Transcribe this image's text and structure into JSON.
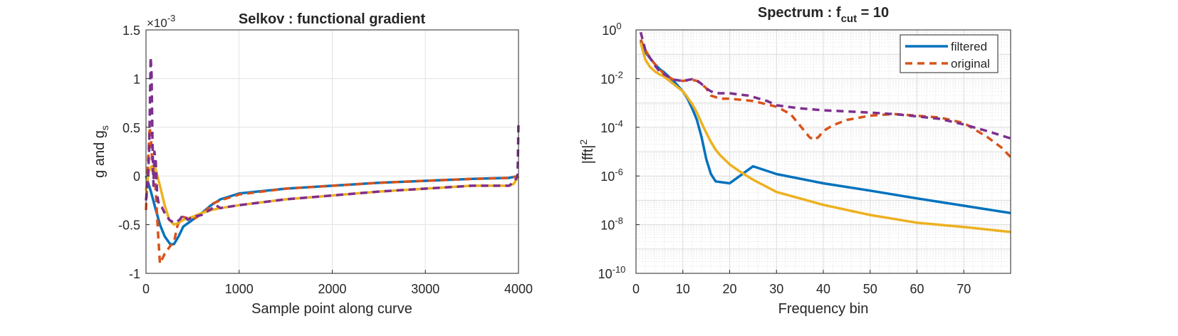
{
  "chart_data": [
    {
      "type": "line",
      "title": "Selkov : functional gradient",
      "xlabel": "Sample point along curve",
      "ylabel": "g and g",
      "ylabel_subscript": "s",
      "exponent_label": "×10",
      "exponent_power": "-3",
      "xlim": [
        0,
        4000
      ],
      "ylim": [
        -1.0,
        1.5
      ],
      "x_ticks": [
        0,
        1000,
        2000,
        3000,
        4000
      ],
      "x_tick_labels": [
        "0",
        "1000",
        "2000",
        "3000",
        "4000"
      ],
      "y_ticks": [
        -1.0,
        -0.5,
        0,
        0.5,
        1.0,
        1.5
      ],
      "y_tick_labels": [
        "-1",
        "-0.5",
        "0",
        "0.5",
        "1",
        "1.5"
      ],
      "grid": true,
      "series": [
        {
          "color": "#0072BD",
          "dash": "solid",
          "x": [
            0,
            50,
            100,
            150,
            200,
            260,
            300,
            350,
            400,
            500,
            600,
            700,
            800,
            1000,
            1500,
            2000,
            2500,
            3000,
            3500,
            3900,
            4000
          ],
          "y": [
            0.0,
            -0.15,
            -0.33,
            -0.5,
            -0.62,
            -0.7,
            -0.7,
            -0.62,
            -0.52,
            -0.45,
            -0.38,
            -0.3,
            -0.24,
            -0.18,
            -0.13,
            -0.1,
            -0.07,
            -0.05,
            -0.03,
            -0.02,
            0.0
          ]
        },
        {
          "color": "#D95319",
          "dash": "dashed",
          "x": [
            0,
            20,
            40,
            55,
            70,
            90,
            110,
            130,
            150,
            175,
            200,
            260,
            300,
            340,
            400,
            500,
            550,
            650,
            700,
            800,
            1000,
            1500,
            2000,
            2500,
            3000,
            3500,
            3900,
            4000
          ],
          "y": [
            -0.35,
            0.1,
            0.5,
            0.35,
            0.05,
            0.08,
            -0.25,
            -0.6,
            -0.9,
            -0.85,
            -0.8,
            -0.72,
            -0.68,
            -0.5,
            -0.42,
            -0.45,
            -0.42,
            -0.35,
            -0.29,
            -0.25,
            -0.19,
            -0.13,
            -0.1,
            -0.07,
            -0.05,
            -0.03,
            -0.02,
            0.0
          ]
        },
        {
          "color": "#EDB120",
          "dash": "solid",
          "x": [
            0,
            30,
            60,
            100,
            150,
            200,
            250,
            300,
            350,
            400,
            500,
            600,
            700,
            800,
            1000,
            1500,
            2000,
            2500,
            3000,
            3500,
            3900,
            3950,
            4000
          ],
          "y": [
            -0.15,
            0.05,
            0.1,
            0.08,
            -0.1,
            -0.3,
            -0.45,
            -0.5,
            -0.48,
            -0.45,
            -0.42,
            -0.38,
            -0.35,
            -0.33,
            -0.3,
            -0.24,
            -0.2,
            -0.16,
            -0.13,
            -0.1,
            -0.1,
            -0.08,
            0.0
          ]
        },
        {
          "color": "#7E2F8E",
          "dash": "dashed",
          "x": [
            0,
            20,
            35,
            50,
            60,
            70,
            80,
            90,
            105,
            120,
            140,
            170,
            200,
            250,
            300,
            330,
            360,
            400,
            450,
            500,
            600,
            700,
            750,
            800,
            1000,
            1500,
            2000,
            2500,
            3000,
            3500,
            3900,
            3960,
            3990,
            4000
          ],
          "y": [
            -0.25,
            -0.05,
            0.3,
            1.22,
            1.05,
            0.3,
            -0.1,
            0.25,
            0.15,
            -0.2,
            -0.3,
            -0.32,
            -0.38,
            -0.45,
            -0.48,
            -0.47,
            -0.45,
            -0.4,
            -0.45,
            -0.42,
            -0.4,
            -0.34,
            -0.3,
            -0.33,
            -0.3,
            -0.24,
            -0.2,
            -0.16,
            -0.13,
            -0.1,
            -0.1,
            -0.05,
            0.0,
            0.55
          ]
        }
      ]
    },
    {
      "type": "line",
      "title": "Spectrum : f",
      "title_subscript": "cut",
      "title_suffix": " = 10",
      "xlabel": "Frequency bin",
      "ylabel": "|fft|",
      "ylabel_superscript": "2",
      "xlim": [
        0,
        80
      ],
      "ylim": [
        1e-10,
        1
      ],
      "yscale": "log",
      "x_ticks": [
        0,
        10,
        20,
        30,
        40,
        50,
        60,
        70
      ],
      "x_tick_labels": [
        "0",
        "10",
        "20",
        "30",
        "40",
        "50",
        "60",
        "70"
      ],
      "y_tick_base": "10",
      "y_tick_exponents": [
        "0",
        "-2",
        "-4",
        "-6",
        "-8",
        "-10"
      ],
      "y_ticks": [
        1,
        0.01,
        0.0001,
        1e-06,
        1e-08,
        1e-10
      ],
      "grid": true,
      "legend": {
        "position": "top-right",
        "entries": [
          "filtered",
          "original"
        ]
      },
      "series": [
        {
          "name": "filtered",
          "color": "#0072BD",
          "dash": "solid",
          "x": [
            1,
            2,
            3,
            4,
            5,
            6,
            8,
            10,
            11,
            12,
            13,
            14,
            15,
            16,
            17,
            20,
            25,
            30,
            40,
            50,
            60,
            70,
            80
          ],
          "y": [
            0.35,
            0.12,
            0.07,
            0.04,
            0.025,
            0.018,
            0.008,
            0.003,
            0.0015,
            0.0006,
            0.0002,
            4e-05,
            5e-06,
            1.2e-06,
            6e-07,
            5e-07,
            2.5e-06,
            1.2e-06,
            5e-07,
            2.5e-07,
            1.2e-07,
            6e-08,
            3e-08
          ]
        },
        {
          "name": "original",
          "color": "#D95319",
          "dash": "dashed",
          "x": [
            1,
            2,
            3,
            4,
            5,
            6,
            8,
            10,
            12,
            13,
            14,
            15,
            16,
            18,
            20,
            25,
            30,
            33,
            35,
            37,
            38,
            39,
            40,
            42,
            45,
            50,
            55,
            60,
            65,
            70,
            75,
            78,
            80
          ],
          "y": [
            0.4,
            0.15,
            0.07,
            0.04,
            0.025,
            0.015,
            0.009,
            0.008,
            0.009,
            0.008,
            0.006,
            0.004,
            0.002,
            0.0015,
            0.0015,
            0.0012,
            0.0007,
            0.00035,
            0.00012,
            4e-05,
            3e-05,
            4e-05,
            7e-05,
            0.00012,
            0.0002,
            0.0003,
            0.00035,
            0.0003,
            0.00025,
            0.00015,
            4e-05,
            1.5e-05,
            6e-06
          ]
        },
        {
          "color": "#EDB120",
          "dash": "solid",
          "x": [
            1,
            2,
            3,
            4,
            5,
            6,
            8,
            10,
            11,
            12,
            13,
            14,
            15,
            16,
            17,
            18,
            20,
            22,
            25,
            30,
            35,
            40,
            50,
            60,
            70,
            80
          ],
          "y": [
            0.3,
            0.06,
            0.03,
            0.02,
            0.015,
            0.012,
            0.006,
            0.003,
            0.0017,
            0.0009,
            0.0004,
            0.00015,
            6e-05,
            2.5e-05,
            1.2e-05,
            7e-06,
            3e-06,
            1.6e-06,
            7e-07,
            2.2e-07,
            1.2e-07,
            6.5e-08,
            2.5e-08,
            1.2e-08,
            8e-09,
            5e-09
          ]
        },
        {
          "color": "#7E2F8E",
          "dash": "dashed",
          "x": [
            1,
            2,
            3,
            4,
            5,
            6,
            8,
            10,
            12,
            13,
            14,
            15,
            16,
            17,
            18,
            20,
            24,
            28,
            30,
            35,
            40,
            45,
            50,
            55,
            60,
            65,
            70,
            75,
            80
          ],
          "y": [
            0.8,
            0.15,
            0.07,
            0.035,
            0.02,
            0.015,
            0.009,
            0.008,
            0.0095,
            0.0085,
            0.006,
            0.004,
            0.003,
            0.0025,
            0.0025,
            0.0025,
            0.002,
            0.0012,
            0.0008,
            0.0006,
            0.0005,
            0.00045,
            0.0004,
            0.00035,
            0.00028,
            0.00022,
            0.00013,
            7e-05,
            3.5e-05
          ]
        }
      ]
    }
  ]
}
